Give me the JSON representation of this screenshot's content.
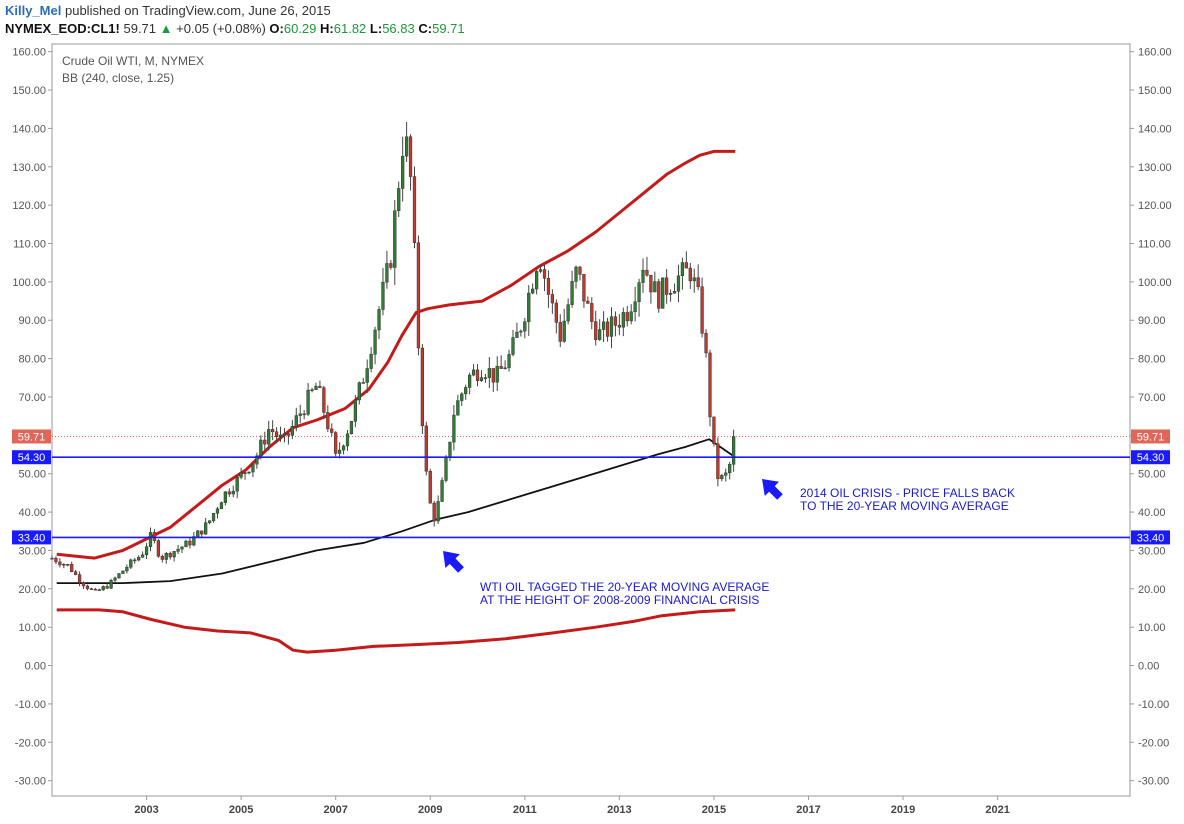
{
  "header": {
    "author": "Killy_Mel",
    "published_text": "published on TradingView.com, June 26, 2015",
    "symbol": "NYMEX_EOD:CL1!",
    "last": "59.71",
    "change": "+0.05 (+0.08%)",
    "open_label": "O:",
    "open": "60.29",
    "high_label": "H:",
    "high": "61.82",
    "low_label": "L:",
    "low": "56.83",
    "close_label": "C:",
    "close": "59.71"
  },
  "legend": {
    "title": "Crude Oil WTI, M, NYMEX",
    "indicator": "BB (240, close, 1.25)"
  },
  "colors": {
    "bull": "#2e7d32",
    "bear": "#c0392b",
    "band": "#c41a1a",
    "basis": "#111111",
    "level_line": "#1a1aff",
    "annotation": "#1a1acc",
    "price_label": "#e0665a"
  },
  "chart_data": {
    "type": "candlestick",
    "title": "Crude Oil WTI, M, NYMEX",
    "x_range": [
      2001.0,
      2023.8
    ],
    "y_range": [
      -34,
      162
    ],
    "x_ticks": [
      "2003",
      "2005",
      "2007",
      "2009",
      "2011",
      "2013",
      "2015",
      "2017",
      "2019",
      "2021"
    ],
    "x_tick_values": [
      2003,
      2005,
      2007,
      2009,
      2011,
      2013,
      2015,
      2017,
      2019,
      2021
    ],
    "y_ticks": [
      "160.00",
      "150.00",
      "140.00",
      "130.00",
      "120.00",
      "110.00",
      "100.00",
      "90.00",
      "80.00",
      "70.00",
      "60.00",
      "50.00",
      "40.00",
      "30.00",
      "20.00",
      "10.00",
      "0.00",
      "-10.00",
      "-20.00",
      "-30.00"
    ],
    "y_tick_values": [
      160,
      150,
      140,
      130,
      120,
      110,
      100,
      90,
      80,
      70,
      60,
      50,
      40,
      30,
      20,
      10,
      0,
      -10,
      -20,
      -30
    ],
    "anchors": [
      [
        2001.0,
        28
      ],
      [
        2001.35,
        26
      ],
      [
        2001.6,
        22
      ],
      [
        2001.9,
        19
      ],
      [
        2002.2,
        21
      ],
      [
        2002.6,
        26
      ],
      [
        2002.9,
        29
      ],
      [
        2003.1,
        34
      ],
      [
        2003.3,
        28
      ],
      [
        2003.6,
        30
      ],
      [
        2003.9,
        32
      ],
      [
        2004.3,
        37
      ],
      [
        2004.6,
        44
      ],
      [
        2004.9,
        48
      ],
      [
        2005.3,
        54
      ],
      [
        2005.6,
        62
      ],
      [
        2005.9,
        58
      ],
      [
        2006.3,
        67
      ],
      [
        2006.6,
        73
      ],
      [
        2006.9,
        60
      ],
      [
        2007.0,
        54
      ],
      [
        2007.3,
        63
      ],
      [
        2007.6,
        76
      ],
      [
        2007.9,
        92
      ],
      [
        2008.15,
        105
      ],
      [
        2008.45,
        140
      ],
      [
        2008.6,
        125
      ],
      [
        2008.8,
        70
      ],
      [
        2008.95,
        44
      ],
      [
        2009.1,
        38
      ],
      [
        2009.3,
        50
      ],
      [
        2009.5,
        66
      ],
      [
        2009.8,
        75
      ],
      [
        2010.1,
        78
      ],
      [
        2010.4,
        75
      ],
      [
        2010.7,
        81
      ],
      [
        2010.95,
        90
      ],
      [
        2011.3,
        108
      ],
      [
        2011.5,
        97
      ],
      [
        2011.75,
        86
      ],
      [
        2012.1,
        103
      ],
      [
        2012.4,
        90
      ],
      [
        2012.6,
        86
      ],
      [
        2012.9,
        89
      ],
      [
        2013.2,
        93
      ],
      [
        2013.5,
        105
      ],
      [
        2013.8,
        96
      ],
      [
        2014.1,
        100
      ],
      [
        2014.5,
        103
      ],
      [
        2014.7,
        94
      ],
      [
        2014.85,
        78
      ],
      [
        2014.95,
        60
      ],
      [
        2015.1,
        48
      ],
      [
        2015.3,
        50
      ],
      [
        2015.45,
        60
      ]
    ],
    "last_price": 59.71,
    "bb_upper": [
      [
        2001.1,
        29
      ],
      [
        2001.9,
        28
      ],
      [
        2002.5,
        30
      ],
      [
        2003.5,
        36
      ],
      [
        2004.1,
        42
      ],
      [
        2004.6,
        47
      ],
      [
        2005.1,
        51
      ],
      [
        2005.6,
        57
      ],
      [
        2006.1,
        62
      ],
      [
        2006.6,
        64
      ],
      [
        2007.2,
        67
      ],
      [
        2007.7,
        72
      ],
      [
        2008.1,
        79
      ],
      [
        2008.4,
        86
      ],
      [
        2008.7,
        92
      ],
      [
        2008.95,
        93
      ],
      [
        2009.4,
        94
      ],
      [
        2010.1,
        95
      ],
      [
        2010.7,
        99
      ],
      [
        2011.3,
        104
      ],
      [
        2011.9,
        108
      ],
      [
        2012.5,
        113
      ],
      [
        2013.1,
        119
      ],
      [
        2013.6,
        124
      ],
      [
        2014.0,
        128
      ],
      [
        2014.4,
        131
      ],
      [
        2014.7,
        133
      ],
      [
        2015.0,
        134
      ],
      [
        2015.45,
        134
      ]
    ],
    "bb_basis": [
      [
        2001.1,
        21.5
      ],
      [
        2002.5,
        21.5
      ],
      [
        2003.5,
        22
      ],
      [
        2004.6,
        24
      ],
      [
        2005.6,
        27
      ],
      [
        2006.6,
        30
      ],
      [
        2007.6,
        32
      ],
      [
        2008.4,
        35
      ],
      [
        2009.1,
        38
      ],
      [
        2009.8,
        40
      ],
      [
        2010.6,
        43
      ],
      [
        2011.4,
        46
      ],
      [
        2012.2,
        49
      ],
      [
        2013.0,
        52
      ],
      [
        2013.8,
        55
      ],
      [
        2014.4,
        57
      ],
      [
        2014.9,
        59
      ],
      [
        2015.45,
        54.3
      ]
    ],
    "bb_lower": [
      [
        2001.1,
        14.5
      ],
      [
        2002.0,
        14.5
      ],
      [
        2002.5,
        14
      ],
      [
        2003.1,
        12
      ],
      [
        2003.8,
        10
      ],
      [
        2004.5,
        9
      ],
      [
        2005.2,
        8.5
      ],
      [
        2005.8,
        6.5
      ],
      [
        2006.1,
        4
      ],
      [
        2006.4,
        3.5
      ],
      [
        2007.0,
        4
      ],
      [
        2007.8,
        5
      ],
      [
        2008.8,
        5.5
      ],
      [
        2009.6,
        6
      ],
      [
        2010.6,
        7
      ],
      [
        2011.6,
        8.5
      ],
      [
        2012.5,
        10
      ],
      [
        2013.3,
        11.5
      ],
      [
        2013.9,
        13
      ],
      [
        2014.3,
        13.5
      ],
      [
        2014.7,
        14
      ],
      [
        2015.45,
        14.5
      ]
    ],
    "levels": [
      {
        "value": 54.3,
        "label": "54.30"
      },
      {
        "value": 33.4,
        "label": "33.40"
      }
    ],
    "annotations": [
      {
        "lines": [
          "2014 OIL CRISIS - PRICE FALLS BACK",
          "TO THE 20-YEAR MOVING AVERAGE"
        ]
      },
      {
        "lines": [
          "WTI OIL TAGGED THE 20-YEAR MOVING AVERAGE",
          "AT THE HEIGHT OF 2008-2009 FINANCIAL CRISIS"
        ]
      }
    ]
  }
}
